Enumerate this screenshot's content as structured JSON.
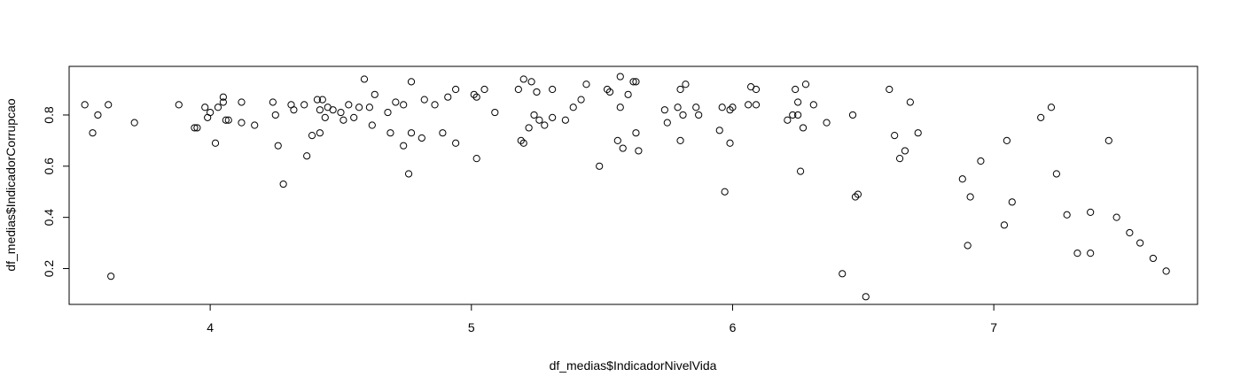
{
  "chart_data": {
    "type": "scatter",
    "title": "",
    "xlabel": "df_medias$IndicadorNivelVida",
    "ylabel": "df_medias$IndicadorCorrupcao",
    "xlim": [
      3.46,
      7.78
    ],
    "ylim": [
      0.06,
      0.99
    ],
    "xticks": [
      4,
      5,
      6,
      7
    ],
    "yticks": [
      0.2,
      0.4,
      0.6,
      0.8
    ],
    "xtick_labels": [
      "4",
      "5",
      "6",
      "7"
    ],
    "ytick_labels": [
      "0.2",
      "0.4",
      "0.6",
      "0.8"
    ],
    "grid": false,
    "legend": "none",
    "marker": "open-circle",
    "marker_color": "#000000",
    "points": [
      [
        3.52,
        0.84
      ],
      [
        3.55,
        0.73
      ],
      [
        3.57,
        0.8
      ],
      [
        3.61,
        0.84
      ],
      [
        3.62,
        0.17
      ],
      [
        3.71,
        0.77
      ],
      [
        3.88,
        0.84
      ],
      [
        3.94,
        0.75
      ],
      [
        3.95,
        0.75
      ],
      [
        3.98,
        0.83
      ],
      [
        3.99,
        0.79
      ],
      [
        4.0,
        0.81
      ],
      [
        4.02,
        0.69
      ],
      [
        4.03,
        0.83
      ],
      [
        4.05,
        0.85
      ],
      [
        4.05,
        0.87
      ],
      [
        4.06,
        0.78
      ],
      [
        4.07,
        0.78
      ],
      [
        4.12,
        0.85
      ],
      [
        4.12,
        0.77
      ],
      [
        4.17,
        0.76
      ],
      [
        4.24,
        0.85
      ],
      [
        4.25,
        0.8
      ],
      [
        4.26,
        0.68
      ],
      [
        4.28,
        0.53
      ],
      [
        4.31,
        0.84
      ],
      [
        4.32,
        0.82
      ],
      [
        4.36,
        0.84
      ],
      [
        4.37,
        0.64
      ],
      [
        4.39,
        0.72
      ],
      [
        4.41,
        0.86
      ],
      [
        4.42,
        0.82
      ],
      [
        4.42,
        0.73
      ],
      [
        4.43,
        0.86
      ],
      [
        4.44,
        0.79
      ],
      [
        4.45,
        0.83
      ],
      [
        4.47,
        0.82
      ],
      [
        4.5,
        0.81
      ],
      [
        4.51,
        0.78
      ],
      [
        4.53,
        0.84
      ],
      [
        4.55,
        0.79
      ],
      [
        4.57,
        0.83
      ],
      [
        4.59,
        0.94
      ],
      [
        4.61,
        0.83
      ],
      [
        4.62,
        0.76
      ],
      [
        4.63,
        0.88
      ],
      [
        4.68,
        0.81
      ],
      [
        4.69,
        0.73
      ],
      [
        4.71,
        0.85
      ],
      [
        4.74,
        0.84
      ],
      [
        4.74,
        0.68
      ],
      [
        4.76,
        0.57
      ],
      [
        4.77,
        0.73
      ],
      [
        4.77,
        0.93
      ],
      [
        4.81,
        0.71
      ],
      [
        4.82,
        0.86
      ],
      [
        4.86,
        0.84
      ],
      [
        4.89,
        0.73
      ],
      [
        4.91,
        0.87
      ],
      [
        4.94,
        0.9
      ],
      [
        4.94,
        0.69
      ],
      [
        5.01,
        0.88
      ],
      [
        5.02,
        0.87
      ],
      [
        5.02,
        0.63
      ],
      [
        5.05,
        0.9
      ],
      [
        5.09,
        0.81
      ],
      [
        5.18,
        0.9
      ],
      [
        5.19,
        0.7
      ],
      [
        5.2,
        0.94
      ],
      [
        5.2,
        0.69
      ],
      [
        5.22,
        0.75
      ],
      [
        5.23,
        0.93
      ],
      [
        5.24,
        0.8
      ],
      [
        5.25,
        0.89
      ],
      [
        5.26,
        0.78
      ],
      [
        5.28,
        0.76
      ],
      [
        5.31,
        0.9
      ],
      [
        5.31,
        0.79
      ],
      [
        5.36,
        0.78
      ],
      [
        5.39,
        0.83
      ],
      [
        5.42,
        0.86
      ],
      [
        5.44,
        0.92
      ],
      [
        5.49,
        0.6
      ],
      [
        5.52,
        0.9
      ],
      [
        5.53,
        0.89
      ],
      [
        5.56,
        0.7
      ],
      [
        5.57,
        0.83
      ],
      [
        5.57,
        0.95
      ],
      [
        5.58,
        0.67
      ],
      [
        5.6,
        0.88
      ],
      [
        5.62,
        0.93
      ],
      [
        5.63,
        0.93
      ],
      [
        5.63,
        0.73
      ],
      [
        5.64,
        0.66
      ],
      [
        5.74,
        0.82
      ],
      [
        5.75,
        0.77
      ],
      [
        5.79,
        0.83
      ],
      [
        5.8,
        0.7
      ],
      [
        5.8,
        0.9
      ],
      [
        5.81,
        0.8
      ],
      [
        5.82,
        0.92
      ],
      [
        5.86,
        0.83
      ],
      [
        5.87,
        0.8
      ],
      [
        5.95,
        0.74
      ],
      [
        5.96,
        0.83
      ],
      [
        5.97,
        0.5
      ],
      [
        5.99,
        0.69
      ],
      [
        5.99,
        0.82
      ],
      [
        6.0,
        0.83
      ],
      [
        6.06,
        0.84
      ],
      [
        6.07,
        0.91
      ],
      [
        6.09,
        0.9
      ],
      [
        6.09,
        0.84
      ],
      [
        6.21,
        0.78
      ],
      [
        6.23,
        0.8
      ],
      [
        6.24,
        0.9
      ],
      [
        6.25,
        0.85
      ],
      [
        6.25,
        0.8
      ],
      [
        6.26,
        0.58
      ],
      [
        6.27,
        0.75
      ],
      [
        6.28,
        0.92
      ],
      [
        6.31,
        0.84
      ],
      [
        6.36,
        0.77
      ],
      [
        6.42,
        0.18
      ],
      [
        6.46,
        0.8
      ],
      [
        6.47,
        0.48
      ],
      [
        6.48,
        0.49
      ],
      [
        6.51,
        0.09
      ],
      [
        6.6,
        0.9
      ],
      [
        6.62,
        0.72
      ],
      [
        6.64,
        0.63
      ],
      [
        6.66,
        0.66
      ],
      [
        6.68,
        0.85
      ],
      [
        6.71,
        0.73
      ],
      [
        6.88,
        0.55
      ],
      [
        6.9,
        0.29
      ],
      [
        6.91,
        0.48
      ],
      [
        6.95,
        0.62
      ],
      [
        7.04,
        0.37
      ],
      [
        7.05,
        0.7
      ],
      [
        7.07,
        0.46
      ],
      [
        7.18,
        0.79
      ],
      [
        7.22,
        0.83
      ],
      [
        7.24,
        0.57
      ],
      [
        7.28,
        0.41
      ],
      [
        7.32,
        0.26
      ],
      [
        7.37,
        0.26
      ],
      [
        7.37,
        0.42
      ],
      [
        7.44,
        0.7
      ],
      [
        7.47,
        0.4
      ],
      [
        7.52,
        0.34
      ],
      [
        7.56,
        0.3
      ],
      [
        7.61,
        0.24
      ],
      [
        7.66,
        0.19
      ]
    ]
  }
}
